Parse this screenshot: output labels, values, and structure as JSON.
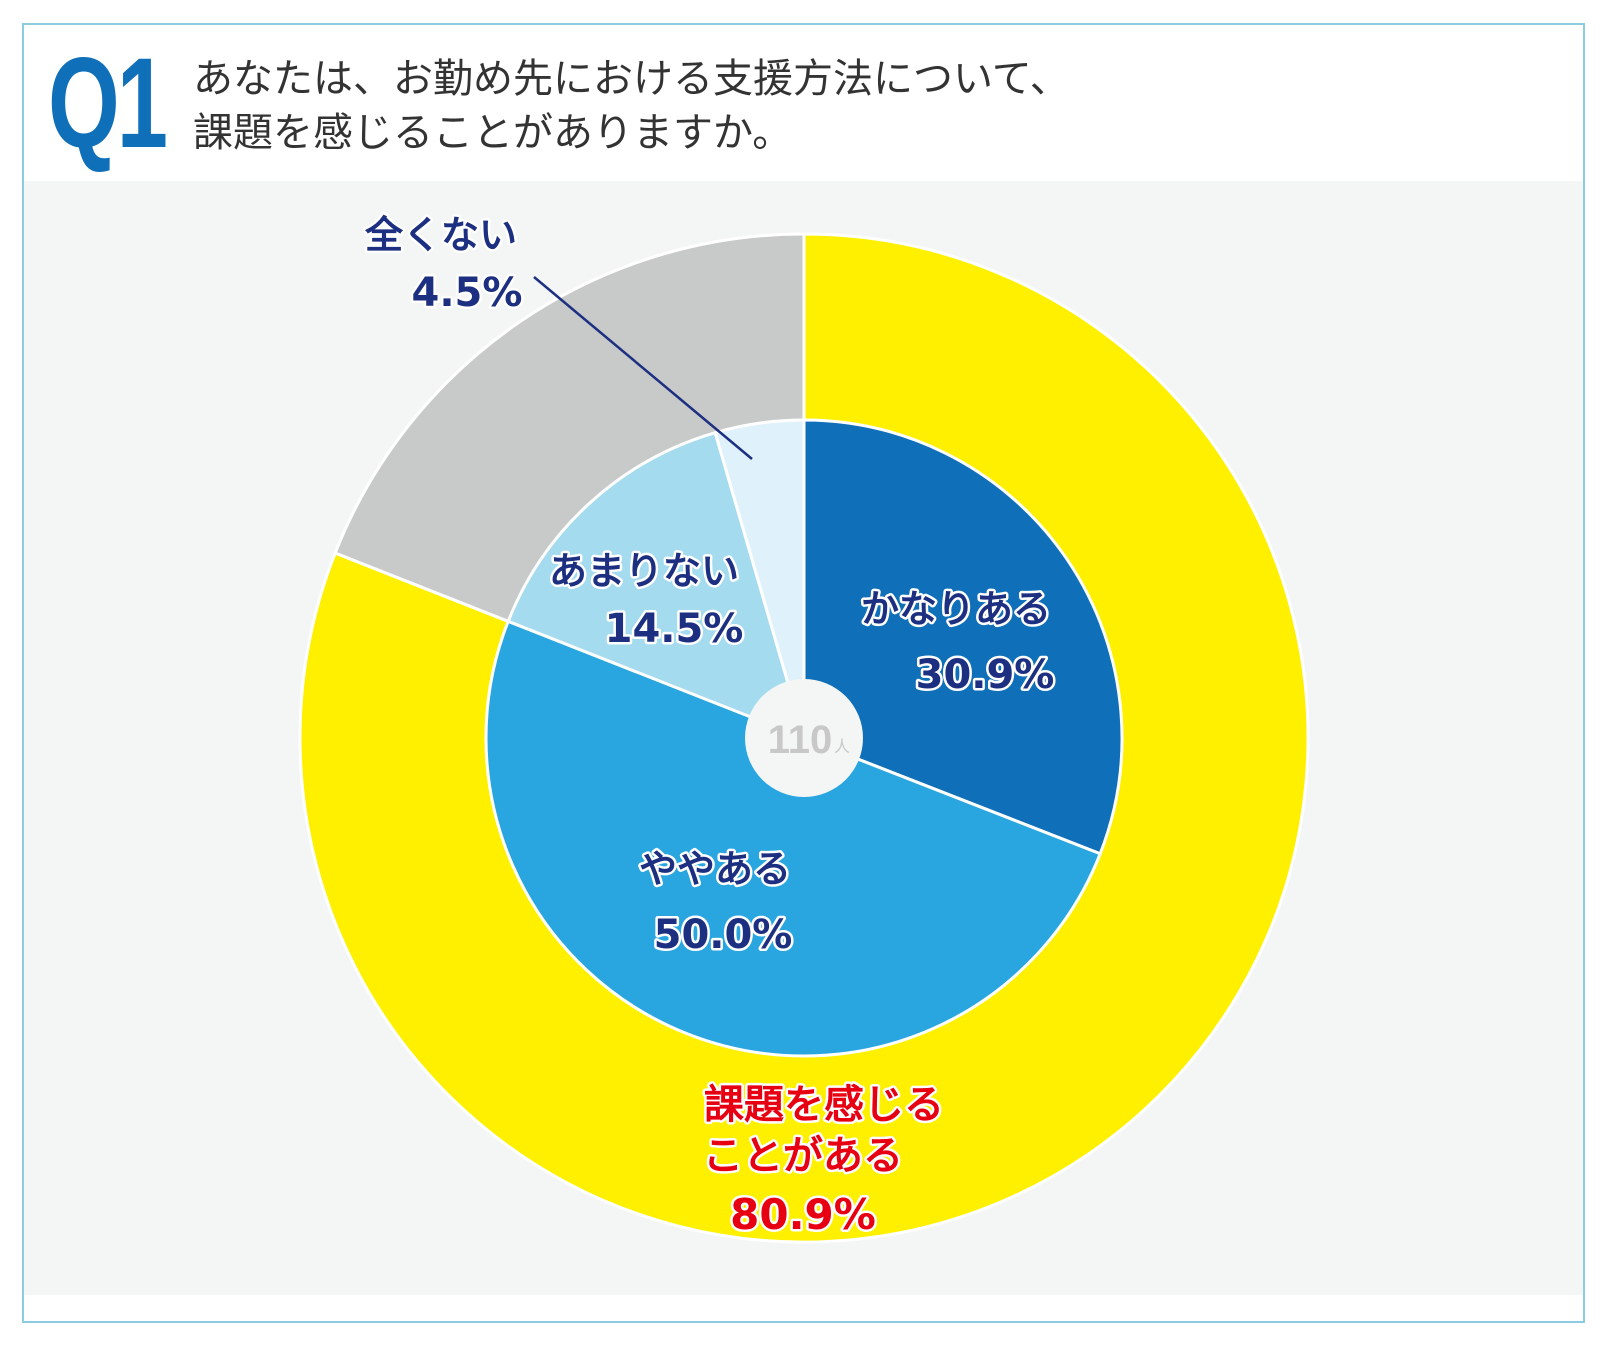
{
  "header": {
    "question_number": "Q1",
    "question_line1": "あなたは、お勤め先における支援方法について、",
    "question_line2": "課題を感じることがありますか。"
  },
  "chart_data": {
    "type": "pie",
    "subtype": "nested-donut",
    "center_label": "110",
    "center_unit": "人",
    "inner": {
      "categories": [
        "かなりある",
        "ややある",
        "あまりない",
        "全くない"
      ],
      "values": [
        30.9,
        50.0,
        14.5,
        4.5
      ],
      "labels": [
        "30.9%",
        "50.0%",
        "14.5%",
        "4.5%"
      ],
      "colors": [
        "#0f6fb8",
        "#29a6e0",
        "#a5dbef",
        "#dff1fa"
      ]
    },
    "outer": {
      "categories": [
        "課題を感じることがある",
        ""
      ],
      "values": [
        80.9,
        19.0
      ],
      "colors": [
        "#fff000",
        "#c8c9c9"
      ],
      "label_line1": "課題を感じる",
      "label_line2": "ことがある",
      "label_value": "80.9%",
      "label_color": "#e60012"
    },
    "label_color": "#1d2f80",
    "start": "12 o'clock, clockwise"
  }
}
